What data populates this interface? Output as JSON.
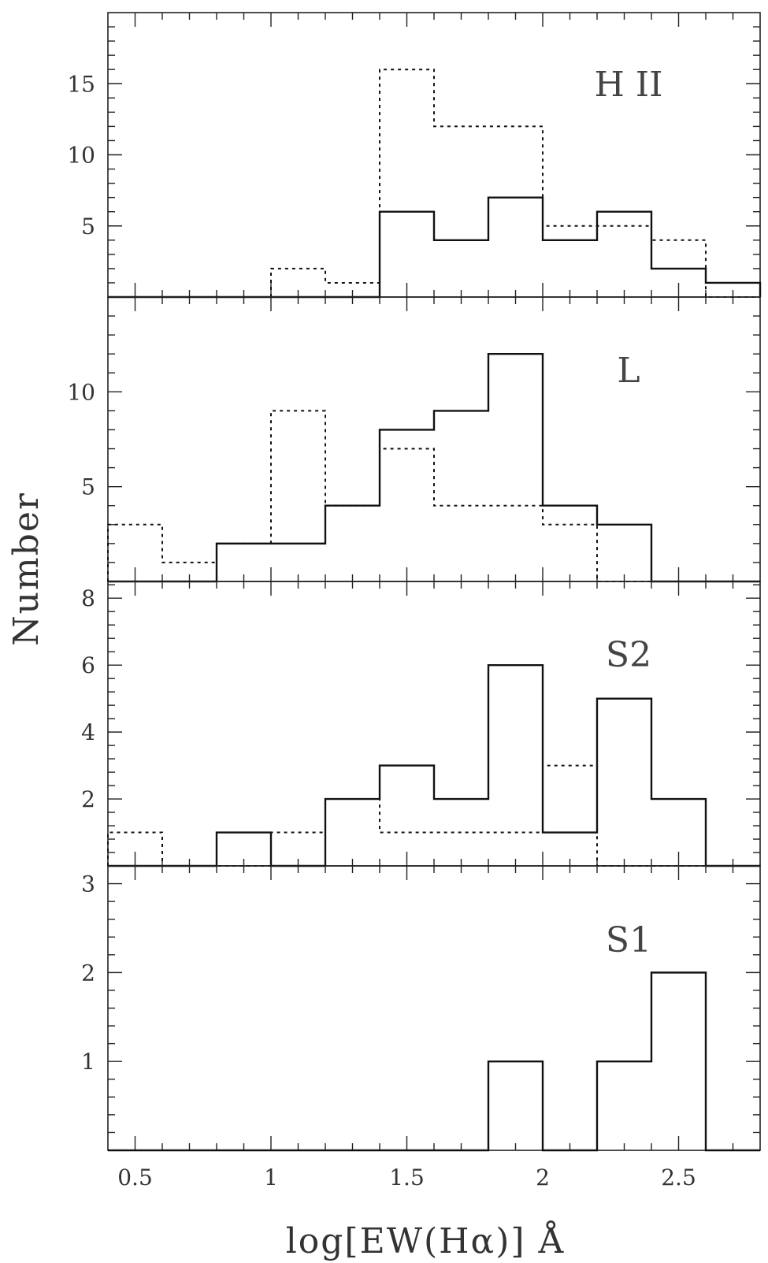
{
  "figure": {
    "xlabel": "log[EW(Hα)] Å",
    "ylabel": "Number"
  },
  "chart_data": [
    {
      "type": "bar",
      "histtype": "step",
      "panel_label": "H II",
      "bin_edges": [
        0.4,
        0.6,
        0.8,
        1.0,
        1.2,
        1.4,
        1.6,
        1.8,
        2.0,
        2.2,
        2.4,
        2.6,
        2.8
      ],
      "series": [
        {
          "style": "solid",
          "values": [
            0,
            0,
            0,
            0,
            0,
            6,
            4,
            7,
            4,
            6,
            2,
            1
          ]
        },
        {
          "style": "dotted",
          "values": [
            0,
            0,
            0,
            2,
            1,
            16,
            12,
            12,
            5,
            5,
            4,
            0
          ]
        }
      ],
      "xlim": [
        0.4,
        2.8
      ],
      "ylim": [
        0,
        20
      ],
      "yticks": [
        "5",
        "10",
        "15"
      ],
      "ytick_values": [
        5,
        10,
        15
      ]
    },
    {
      "type": "bar",
      "histtype": "step",
      "panel_label": "L",
      "bin_edges": [
        0.4,
        0.6,
        0.8,
        1.0,
        1.2,
        1.4,
        1.6,
        1.8,
        2.0,
        2.2,
        2.4,
        2.6,
        2.8
      ],
      "series": [
        {
          "style": "solid",
          "values": [
            0,
            0,
            2,
            2,
            4,
            8,
            9,
            12,
            4,
            3,
            0,
            0
          ]
        },
        {
          "style": "dotted",
          "values": [
            3,
            1,
            2,
            9,
            4,
            7,
            4,
            4,
            3,
            0,
            0,
            0
          ]
        }
      ],
      "xlim": [
        0.4,
        2.8
      ],
      "ylim": [
        0,
        15
      ],
      "yticks": [
        "5",
        "10"
      ],
      "ytick_values": [
        5,
        10
      ]
    },
    {
      "type": "bar",
      "histtype": "step",
      "panel_label": "S2",
      "bin_edges": [
        0.4,
        0.6,
        0.8,
        1.0,
        1.2,
        1.4,
        1.6,
        1.8,
        2.0,
        2.2,
        2.4,
        2.6,
        2.8
      ],
      "series": [
        {
          "style": "solid",
          "values": [
            0,
            0,
            1,
            0,
            2,
            3,
            2,
            6,
            1,
            5,
            2,
            0
          ]
        },
        {
          "style": "dotted",
          "values": [
            1,
            0,
            0,
            1,
            2,
            1,
            1,
            1,
            3,
            0,
            0,
            0
          ]
        }
      ],
      "xlim": [
        0.4,
        2.8
      ],
      "ylim": [
        0,
        8.5
      ],
      "yticks": [
        "2",
        "4",
        "6",
        "8"
      ],
      "ytick_values": [
        2,
        4,
        6,
        8
      ]
    },
    {
      "type": "bar",
      "histtype": "step",
      "panel_label": "S1",
      "bin_edges": [
        0.4,
        0.6,
        0.8,
        1.0,
        1.2,
        1.4,
        1.6,
        1.8,
        2.0,
        2.2,
        2.4,
        2.6,
        2.8
      ],
      "series": [
        {
          "style": "solid",
          "values": [
            0,
            0,
            0,
            0,
            0,
            0,
            0,
            1,
            0,
            1,
            2,
            0
          ]
        }
      ],
      "xlim": [
        0.4,
        2.8
      ],
      "ylim": [
        0,
        3.2
      ],
      "yticks": [
        "1",
        "2",
        "3"
      ],
      "ytick_values": [
        1,
        2,
        3
      ],
      "xticks": [
        "0.5",
        "1",
        "1.5",
        "2",
        "2.5"
      ],
      "xtick_values": [
        0.5,
        1,
        1.5,
        2,
        2.5
      ]
    }
  ]
}
